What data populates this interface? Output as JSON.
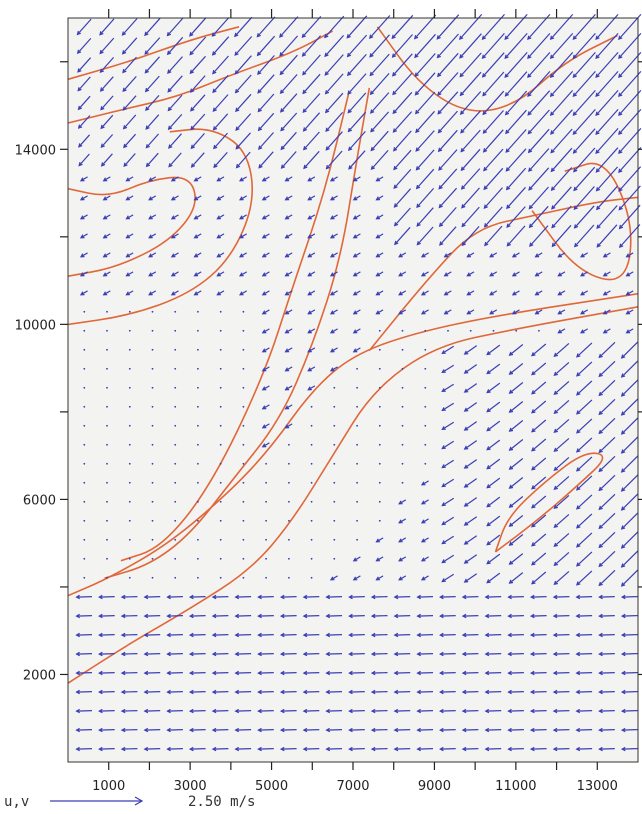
{
  "chart_data": {
    "type": "vector-contour",
    "title": "",
    "xlabel": "",
    "ylabel": "",
    "xlim": [
      0,
      14000
    ],
    "ylim": [
      0,
      17000
    ],
    "x_ticks": [
      1000,
      3000,
      5000,
      7000,
      9000,
      11000,
      13000
    ],
    "x_tick_labels": [
      "1000",
      "3000",
      "5000",
      "7000",
      "9000",
      "11000",
      "13000"
    ],
    "y_ticks": [
      2000,
      6000,
      10000,
      14000
    ],
    "y_tick_labels": [
      "2000",
      "6000",
      "10000",
      "14000"
    ],
    "minor_tick_step_x": 1000,
    "minor_tick_step_y": 2000,
    "vector_color": "#3b3fb5",
    "contour_color": "#e0673a",
    "plot_background": "#f3f3f1",
    "reference_vector": {
      "label": "u,v",
      "magnitude_label": "2.50 m/s",
      "magnitude": 2.5
    },
    "contours": [
      {
        "name": "c1",
        "points": [
          [
            0,
            1800
          ],
          [
            1500,
            2700
          ],
          [
            3000,
            3500
          ],
          [
            4500,
            4400
          ],
          [
            5500,
            5500
          ],
          [
            6500,
            7000
          ],
          [
            7500,
            8500
          ],
          [
            9000,
            9500
          ],
          [
            11000,
            9900
          ],
          [
            14000,
            10400
          ]
        ]
      },
      {
        "name": "c2",
        "points": [
          [
            0,
            3800
          ],
          [
            1000,
            4200
          ],
          [
            2500,
            5000
          ],
          [
            4000,
            6200
          ],
          [
            5000,
            7200
          ],
          [
            6000,
            8500
          ],
          [
            7000,
            9300
          ],
          [
            8500,
            9800
          ],
          [
            10500,
            10200
          ],
          [
            14000,
            10700
          ]
        ]
      },
      {
        "name": "c3",
        "points": [
          [
            900,
            4200
          ],
          [
            2000,
            4500
          ],
          [
            3000,
            5200
          ],
          [
            4000,
            6400
          ],
          [
            5200,
            7800
          ],
          [
            6000,
            9500
          ],
          [
            6700,
            11500
          ],
          [
            7100,
            13800
          ],
          [
            7400,
            15400
          ]
        ]
      },
      {
        "name": "c4",
        "points": [
          [
            1300,
            4600
          ],
          [
            2300,
            4900
          ],
          [
            3500,
            6300
          ],
          [
            4800,
            8800
          ],
          [
            5500,
            10800
          ],
          [
            6300,
            13000
          ],
          [
            6900,
            15300
          ]
        ]
      },
      {
        "name": "c5",
        "points": [
          [
            0,
            10000
          ],
          [
            1500,
            10200
          ],
          [
            3000,
            10700
          ],
          [
            4000,
            11500
          ],
          [
            4600,
            12800
          ],
          [
            4400,
            14000
          ],
          [
            3500,
            14500
          ],
          [
            2500,
            14400
          ]
        ]
      },
      {
        "name": "c6",
        "points": [
          [
            0,
            11100
          ],
          [
            1200,
            11300
          ],
          [
            2500,
            11900
          ],
          [
            3200,
            12700
          ],
          [
            3000,
            13400
          ],
          [
            2000,
            13300
          ],
          [
            1000,
            12900
          ],
          [
            0,
            13100
          ]
        ]
      },
      {
        "name": "c7",
        "points": [
          [
            0,
            14600
          ],
          [
            1300,
            14900
          ],
          [
            2700,
            15200
          ],
          [
            4000,
            15700
          ],
          [
            5500,
            16200
          ],
          [
            6500,
            16700
          ]
        ]
      },
      {
        "name": "c8",
        "points": [
          [
            0,
            15600
          ],
          [
            1500,
            16000
          ],
          [
            3000,
            16500
          ],
          [
            4200,
            16800
          ]
        ]
      },
      {
        "name": "c9",
        "points": [
          [
            7600,
            16800
          ],
          [
            8600,
            15500
          ],
          [
            9800,
            14800
          ],
          [
            11000,
            15000
          ],
          [
            12200,
            16000
          ],
          [
            13500,
            16600
          ]
        ]
      },
      {
        "name": "c10",
        "points": [
          [
            7400,
            9400
          ],
          [
            8800,
            11000
          ],
          [
            10000,
            12200
          ],
          [
            11500,
            12500
          ],
          [
            13000,
            12800
          ],
          [
            14000,
            12900
          ]
        ]
      },
      {
        "name": "c11",
        "points": [
          [
            10500,
            4800
          ],
          [
            11500,
            5500
          ],
          [
            12500,
            6300
          ],
          [
            13300,
            7000
          ],
          [
            12700,
            7100
          ],
          [
            11700,
            6400
          ],
          [
            10800,
            5600
          ],
          [
            10500,
            4800
          ]
        ]
      },
      {
        "name": "c12",
        "points": [
          [
            11400,
            12600
          ],
          [
            12500,
            11200
          ],
          [
            13700,
            10900
          ],
          [
            13900,
            12300
          ],
          [
            13200,
            13800
          ],
          [
            12200,
            13500
          ]
        ]
      }
    ]
  }
}
